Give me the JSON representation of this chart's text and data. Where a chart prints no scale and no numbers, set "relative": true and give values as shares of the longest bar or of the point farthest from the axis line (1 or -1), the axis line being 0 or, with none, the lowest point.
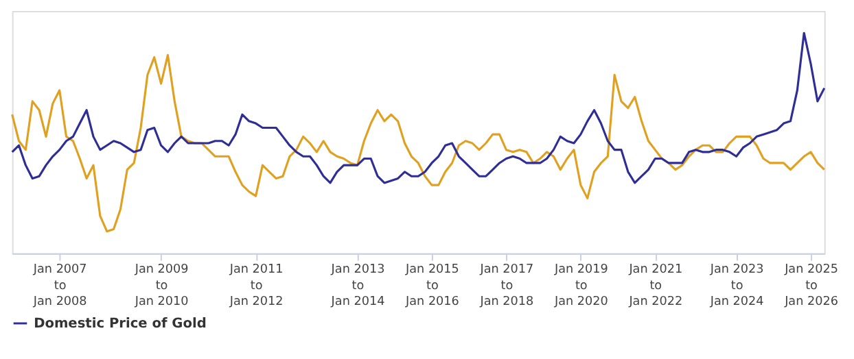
{
  "chart_data": {
    "type": "line",
    "relative": true,
    "legend": "bottom",
    "line_style": "solid",
    "marker": "none",
    "categories": [
      null,
      null,
      null,
      null,
      null,
      null,
      null,
      "Jan 2007\nto\nJan 2008",
      null,
      null,
      null,
      null,
      null,
      null,
      null,
      null,
      null,
      null,
      null,
      null,
      null,
      null,
      "Jan 2009\nto\nJan 2010",
      null,
      null,
      null,
      null,
      null,
      null,
      null,
      null,
      null,
      null,
      null,
      null,
      null,
      "Jan 2011\nto\nJan 2012",
      null,
      null,
      null,
      null,
      null,
      null,
      null,
      null,
      null,
      null,
      null,
      null,
      null,
      null,
      "Jan 2013\nto\nJan 2014",
      null,
      null,
      null,
      null,
      null,
      null,
      null,
      null,
      null,
      null,
      "Jan 2015\nto\nJan 2016",
      null,
      null,
      null,
      null,
      null,
      null,
      null,
      null,
      null,
      null,
      "Jan 2017\nto\nJan 2018",
      null,
      null,
      null,
      null,
      null,
      null,
      null,
      null,
      null,
      null,
      "Jan 2019\nto\nJan 2020",
      null,
      null,
      null,
      null,
      null,
      null,
      null,
      null,
      null,
      null,
      "Jan 2021\nto\nJan 2022",
      null,
      null,
      null,
      null,
      null,
      null,
      null,
      null,
      null,
      null,
      null,
      "Jan 2023\nto\nJan 2024",
      null,
      null,
      null,
      null,
      null,
      null,
      null,
      null,
      null,
      null,
      "Jan 2025\nto\nJan 2026",
      null,
      null
    ],
    "series": [
      {
        "color": "#e0a020",
        "values": [
          0.63,
          0.51,
          0.47,
          0.69,
          0.65,
          0.53,
          0.68,
          0.74,
          0.53,
          0.51,
          0.43,
          0.34,
          0.4,
          0.17,
          0.1,
          0.11,
          0.2,
          0.38,
          0.41,
          0.57,
          0.81,
          0.89,
          0.77,
          0.9,
          0.69,
          0.53,
          0.51,
          0.5,
          0.5,
          0.47,
          0.44,
          0.44,
          0.44,
          0.37,
          0.31,
          0.28,
          0.26,
          0.4,
          0.37,
          0.34,
          0.35,
          0.44,
          0.47,
          0.53,
          0.5,
          0.46,
          0.51,
          0.46,
          0.44,
          0.43,
          0.41,
          0.4,
          0.51,
          0.59,
          0.65,
          0.6,
          0.63,
          0.6,
          0.5,
          0.44,
          0.41,
          0.35,
          0.31,
          0.31,
          0.37,
          0.41,
          0.49,
          0.51,
          0.5,
          0.47,
          0.5,
          0.54,
          0.54,
          0.47,
          0.46,
          0.47,
          0.46,
          0.41,
          0.43,
          0.46,
          0.44,
          0.38,
          0.43,
          0.47,
          0.31,
          0.25,
          0.37,
          0.41,
          0.44,
          0.81,
          0.69,
          0.66,
          0.71,
          0.6,
          0.51,
          0.47,
          0.43,
          0.41,
          0.38,
          0.4,
          0.44,
          0.47,
          0.49,
          0.49,
          0.46,
          0.46,
          0.5,
          0.53,
          0.53,
          0.53,
          0.49,
          0.43,
          0.41,
          0.41,
          0.41,
          0.38,
          0.41,
          0.44,
          0.46,
          0.41,
          0.38
        ]
      },
      {
        "name": "Domestic Price of Gold",
        "color": "#2e2e96",
        "values": [
          0.46,
          0.49,
          0.4,
          0.34,
          0.35,
          0.4,
          0.44,
          0.47,
          0.51,
          0.53,
          0.59,
          0.65,
          0.53,
          0.47,
          0.49,
          0.51,
          0.5,
          0.48,
          0.46,
          0.47,
          0.56,
          0.57,
          0.49,
          0.46,
          0.5,
          0.53,
          0.5,
          0.5,
          0.5,
          0.5,
          0.51,
          0.51,
          0.49,
          0.54,
          0.63,
          0.6,
          0.59,
          0.57,
          0.57,
          0.57,
          0.53,
          0.49,
          0.46,
          0.44,
          0.44,
          0.4,
          0.35,
          0.32,
          0.37,
          0.4,
          0.4,
          0.4,
          0.43,
          0.43,
          0.35,
          0.32,
          0.33,
          0.34,
          0.37,
          0.35,
          0.35,
          0.37,
          0.41,
          0.44,
          0.49,
          0.5,
          0.44,
          0.41,
          0.38,
          0.35,
          0.35,
          0.38,
          0.41,
          0.43,
          0.44,
          0.43,
          0.41,
          0.41,
          0.41,
          0.43,
          0.47,
          0.53,
          0.51,
          0.5,
          0.54,
          0.6,
          0.65,
          0.59,
          0.51,
          0.47,
          0.47,
          0.37,
          0.32,
          0.35,
          0.38,
          0.43,
          0.43,
          0.41,
          0.41,
          0.41,
          0.46,
          0.47,
          0.46,
          0.46,
          0.47,
          0.47,
          0.46,
          0.44,
          0.48,
          0.5,
          0.53,
          0.54,
          0.55,
          0.56,
          0.59,
          0.6,
          0.74,
          1.0,
          0.86,
          0.69,
          0.75
        ]
      }
    ]
  }
}
